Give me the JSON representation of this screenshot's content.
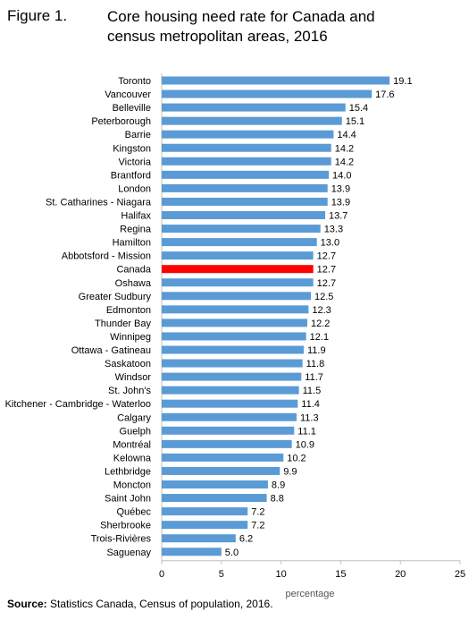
{
  "figure": {
    "number": "Figure 1.",
    "title": "Core housing need rate for Canada and census metropolitan areas, 2016"
  },
  "source": {
    "label": "Source:",
    "text": "Statistics Canada, Census of population, 2016."
  },
  "colors": {
    "bar": "#5b9bd5",
    "highlight": "#ff0000",
    "axis": "#bfbfbf"
  },
  "chart_data": {
    "type": "bar",
    "orientation": "horizontal",
    "xlabel": "percentage",
    "xlim": [
      0,
      25
    ],
    "xticks": [
      0,
      5,
      10,
      15,
      20,
      25
    ],
    "grid": false,
    "highlight_category": "Canada",
    "categories": [
      "Toronto",
      "Vancouver",
      "Belleville",
      "Peterborough",
      "Barrie",
      "Kingston",
      "Victoria",
      "Brantford",
      "London",
      "St. Catharines - Niagara",
      "Halifax",
      "Regina",
      "Hamilton",
      "Abbotsford - Mission",
      "Canada",
      "Oshawa",
      "Greater Sudbury",
      "Edmonton",
      "Thunder Bay",
      "Winnipeg",
      "Ottawa - Gatineau",
      "Saskatoon",
      "Windsor",
      "St. John's",
      "Kitchener - Cambridge - Waterloo",
      "Calgary",
      "Guelph",
      "Montréal",
      "Kelowna",
      "Lethbridge",
      "Moncton",
      "Saint John",
      "Québec",
      "Sherbrooke",
      "Trois-Rivières",
      "Saguenay"
    ],
    "values": [
      19.1,
      17.6,
      15.4,
      15.1,
      14.4,
      14.2,
      14.2,
      14.0,
      13.9,
      13.9,
      13.7,
      13.3,
      13.0,
      12.7,
      12.7,
      12.7,
      12.5,
      12.3,
      12.2,
      12.1,
      11.9,
      11.8,
      11.7,
      11.5,
      11.4,
      11.3,
      11.1,
      10.9,
      10.2,
      9.9,
      8.9,
      8.8,
      7.2,
      7.2,
      6.2,
      5.0
    ],
    "value_labels": [
      "19.1",
      "17.6",
      "15.4",
      "15.1",
      "14.4",
      "14.2",
      "14.2",
      "14.0",
      "13.9",
      "13.9",
      "13.7",
      "13.3",
      "13.0",
      "12.7",
      "12.7",
      "12.7",
      "12.5",
      "12.3",
      "12.2",
      "12.1",
      "11.9",
      "11.8",
      "11.7",
      "11.5",
      "11.4",
      "11.3",
      "11.1",
      "10.9",
      "10.2",
      "9.9",
      "8.9",
      "8.8",
      "7.2",
      "7.2",
      "6.2",
      "5.0"
    ]
  }
}
